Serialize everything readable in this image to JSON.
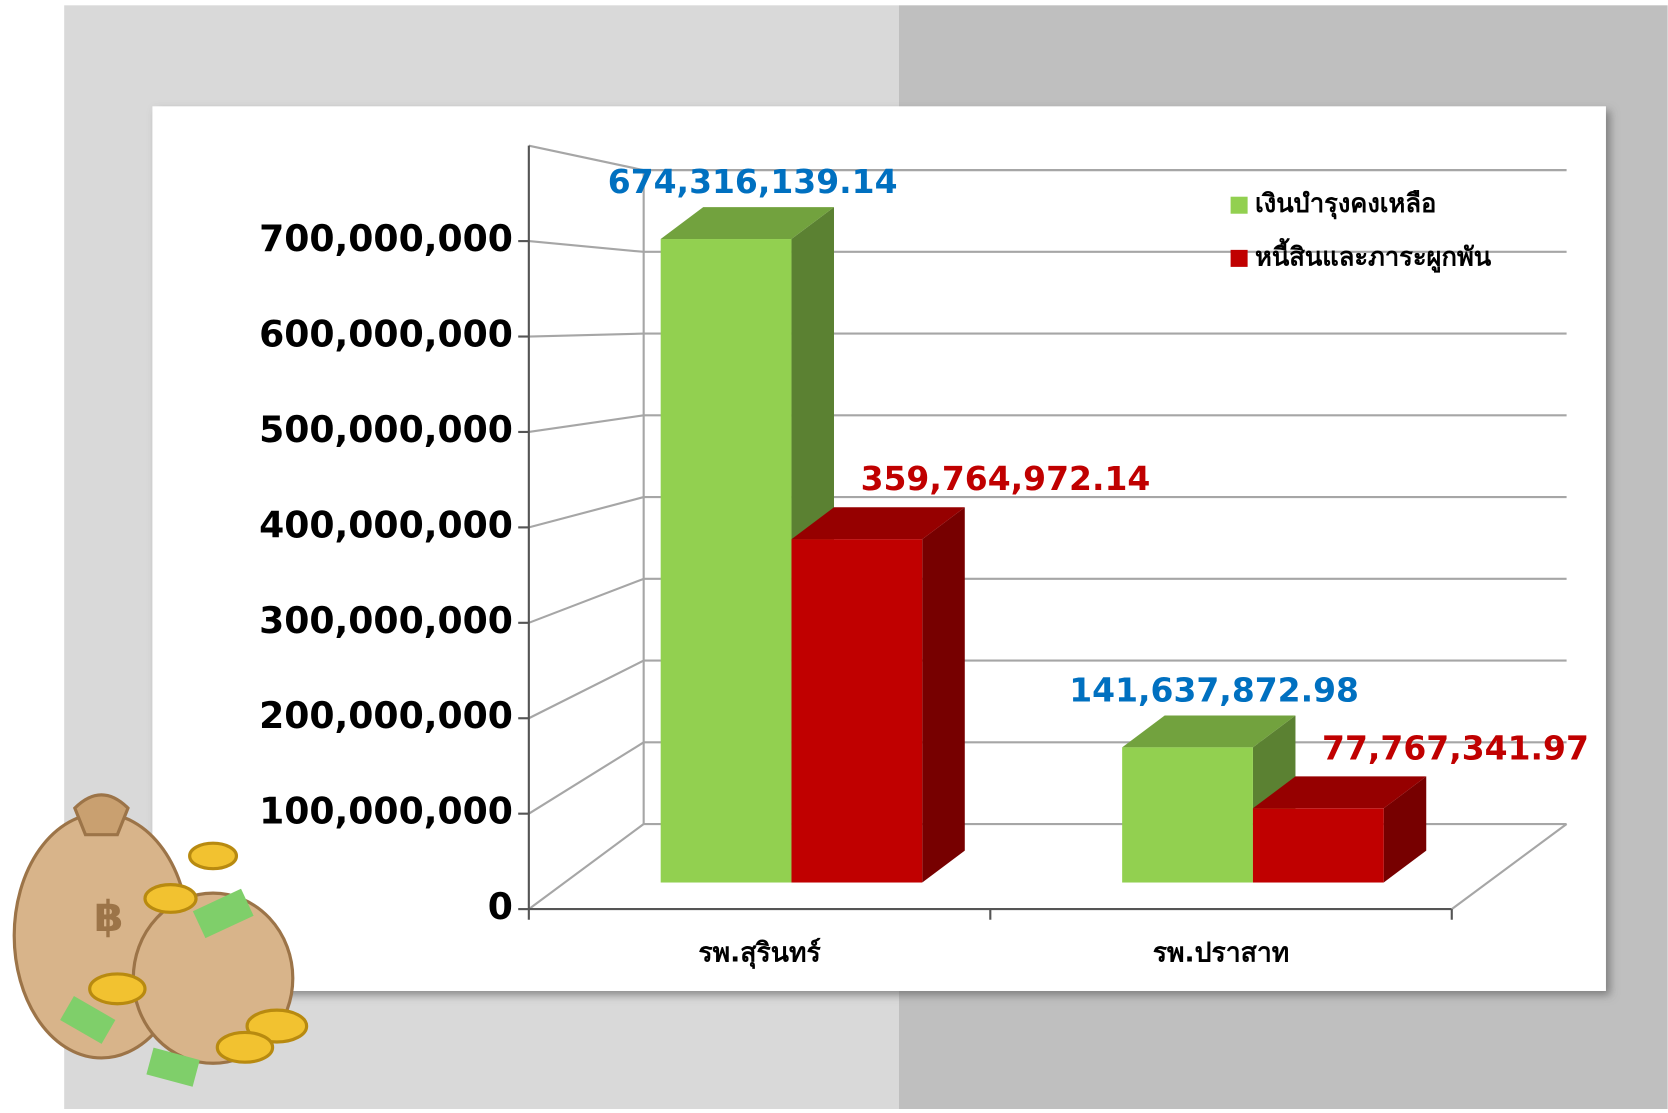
{
  "chart_data": {
    "type": "bar3d",
    "categories": [
      "รพ.สุรินทร์",
      "รพ.ปราสาท"
    ],
    "series": [
      {
        "name": "เงินบำรุงคงเหลือ",
        "color": "#92d050",
        "label_color": "#0070c0",
        "values": [
          674316139.14,
          141637872.98
        ],
        "value_labels": [
          "674,316,139.14",
          "141,637,872.98"
        ]
      },
      {
        "name": "หนี้สินและภาระผูกพัน",
        "color": "#c00000",
        "label_color": "#c00000",
        "values": [
          359764972.14,
          77767341.97
        ],
        "value_labels": [
          "359,764,972.14",
          "77,767,341.97"
        ]
      }
    ],
    "ylim": [
      0,
      800000000
    ],
    "yticks": [
      {
        "value": 0,
        "label": "0"
      },
      {
        "value": 100000000,
        "label": "100,000,000"
      },
      {
        "value": 200000000,
        "label": "200,000,000"
      },
      {
        "value": 300000000,
        "label": "300,000,000"
      },
      {
        "value": 400000000,
        "label": "400,000,000"
      },
      {
        "value": 500000000,
        "label": "500,000,000"
      },
      {
        "value": 600000000,
        "label": "600,000,000"
      },
      {
        "value": 700000000,
        "label": "700,000,000"
      }
    ],
    "grid": true,
    "legend": "top-right"
  }
}
